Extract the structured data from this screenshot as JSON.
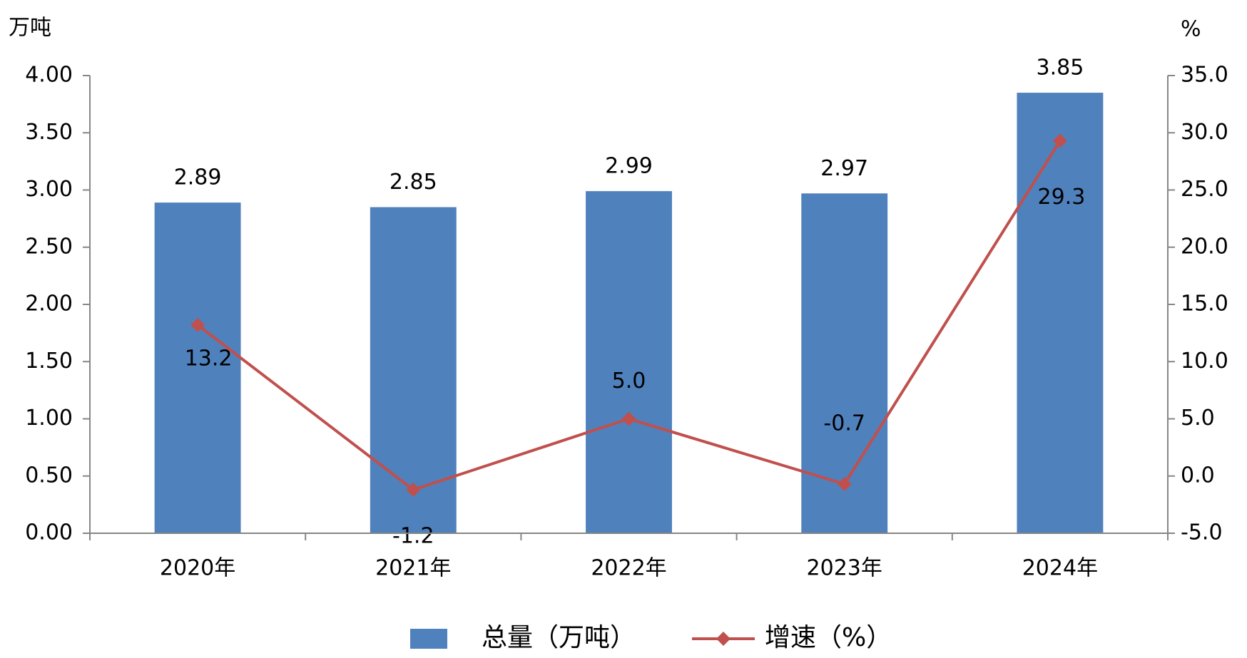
{
  "chart_data": {
    "type": "bar_line",
    "y_axis_title": "万吨",
    "y2_axis_title": "%",
    "categories": [
      "2020年",
      "2021年",
      "2022年",
      "2023年",
      "2024年"
    ],
    "series": [
      {
        "name": "总量（万吨）",
        "type": "bar",
        "color": "#4f81bd",
        "values": [
          2.89,
          2.85,
          2.99,
          2.97,
          3.85
        ]
      },
      {
        "name": "增速（%）",
        "type": "line",
        "axis": "y2",
        "color": "#c0504d",
        "values": [
          13.2,
          -1.2,
          5.0,
          -0.7,
          29.3
        ],
        "value_labels": [
          "13.2",
          "-1.2",
          "5.0",
          "-0.7",
          "29.3"
        ]
      }
    ],
    "ylim": [
      0,
      4
    ],
    "yticks": [
      {
        "value": 0,
        "label": "0.00"
      },
      {
        "value": 0.5,
        "label": "0.50"
      },
      {
        "value": 1,
        "label": "1.00"
      },
      {
        "value": 1.5,
        "label": "1.50"
      },
      {
        "value": 2,
        "label": "2.00"
      },
      {
        "value": 2.5,
        "label": "2.50"
      },
      {
        "value": 3,
        "label": "3.00"
      },
      {
        "value": 3.5,
        "label": "3.50"
      },
      {
        "value": 4,
        "label": "4.00"
      }
    ],
    "y2lim": [
      -5,
      35
    ],
    "y2ticks": [
      {
        "value": -5,
        "label": "-5.0"
      },
      {
        "value": 0,
        "label": "0.0"
      },
      {
        "value": 5,
        "label": "5.0"
      },
      {
        "value": 10,
        "label": "10.0"
      },
      {
        "value": 15,
        "label": "15.0"
      },
      {
        "value": 20,
        "label": "20.0"
      },
      {
        "value": 25,
        "label": "25.0"
      },
      {
        "value": 30,
        "label": "30.0"
      },
      {
        "value": 35,
        "label": "35.0"
      }
    ],
    "legend": "bottom"
  }
}
